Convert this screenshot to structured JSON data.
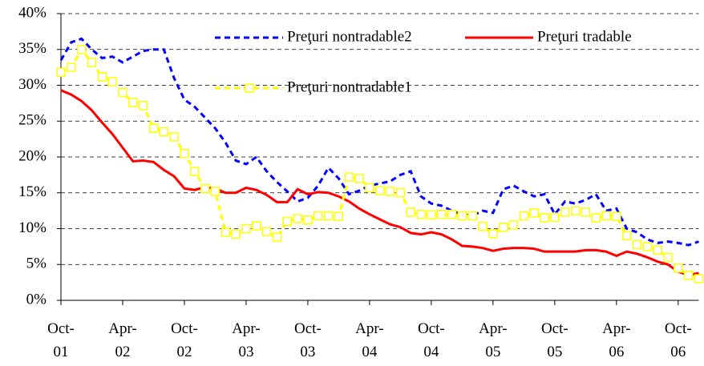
{
  "chart_data": {
    "type": "line",
    "categories": [
      "Oct-01",
      null,
      null,
      null,
      null,
      null,
      "Apr-02",
      null,
      null,
      null,
      null,
      null,
      "Oct-02",
      null,
      null,
      null,
      null,
      null,
      "Apr-03",
      null,
      null,
      null,
      null,
      null,
      "Oct-03",
      null,
      null,
      null,
      null,
      null,
      "Apr-04",
      null,
      null,
      null,
      null,
      null,
      "Oct-04",
      null,
      null,
      null,
      null,
      null,
      "Apr-05",
      null,
      null,
      null,
      null,
      null,
      "Oct-05",
      null,
      null,
      null,
      null,
      null,
      "Apr-06",
      null,
      null,
      null,
      null,
      null,
      "Oct-06",
      null,
      null
    ],
    "series": [
      {
        "name": "Preţuri nontradable2",
        "color": "#0000ff",
        "style": "dashed",
        "values": [
          33.5,
          36.0,
          36.5,
          35.0,
          33.8,
          34.0,
          33.2,
          34.0,
          34.8,
          35.0,
          35.0,
          31.0,
          28.0,
          27.0,
          25.5,
          24.0,
          22.0,
          19.5,
          19.0,
          20.0,
          18.0,
          16.5,
          15.2,
          13.8,
          14.3,
          16.0,
          18.5,
          17.0,
          14.8,
          15.3,
          16.0,
          16.3,
          16.6,
          17.5,
          18.0,
          14.5,
          13.5,
          13.2,
          12.5,
          12.0,
          11.8,
          12.5,
          12.2,
          15.5,
          16.0,
          15.2,
          14.5,
          14.8,
          12.0,
          13.8,
          13.5,
          14.0,
          14.8,
          12.5,
          12.8,
          10.0,
          9.5,
          8.5,
          8.0,
          8.2,
          8.0,
          7.7,
          8.2
        ]
      },
      {
        "name": "Preţuri tradable",
        "color": "#ff0000",
        "style": "solid",
        "values": [
          29.3,
          28.7,
          27.8,
          26.5,
          24.8,
          23.2,
          21.3,
          19.4,
          19.5,
          19.3,
          18.2,
          17.3,
          15.6,
          15.4,
          15.8,
          15.6,
          15.0,
          15.0,
          15.7,
          15.4,
          14.7,
          13.7,
          13.7,
          15.5,
          14.8,
          15.1,
          15.0,
          14.5,
          13.8,
          12.8,
          12.0,
          11.3,
          10.6,
          10.2,
          9.4,
          9.2,
          9.5,
          9.2,
          8.5,
          7.6,
          7.5,
          7.3,
          6.9,
          7.2,
          7.3,
          7.3,
          7.2,
          6.8,
          6.8,
          6.8,
          6.8,
          7.0,
          7.0,
          6.8,
          6.2,
          6.8,
          6.5,
          6.0,
          5.4,
          5.0,
          4.0,
          3.5,
          3.8
        ]
      },
      {
        "name": "Preţuri nontradable1",
        "color": "#ffff00",
        "style": "dashed-marker",
        "values": [
          31.8,
          32.5,
          35.0,
          33.2,
          31.2,
          30.5,
          29.0,
          27.6,
          27.2,
          24.0,
          23.5,
          22.8,
          20.5,
          18.0,
          15.6,
          15.2,
          9.5,
          9.2,
          10.0,
          10.4,
          9.6,
          8.8,
          11.0,
          11.4,
          11.2,
          11.8,
          11.8,
          11.7,
          17.2,
          17.0,
          15.7,
          15.3,
          15.2,
          15.0,
          12.3,
          12.0,
          11.9,
          12.0,
          12.0,
          11.8,
          11.8,
          10.3,
          9.3,
          10.2,
          10.5,
          11.8,
          12.2,
          11.5,
          11.6,
          12.3,
          12.5,
          12.3,
          11.5,
          11.8,
          11.7,
          9.0,
          7.8,
          7.5,
          7.0,
          6.0,
          4.5,
          3.5,
          3.0
        ]
      }
    ],
    "ylim": [
      0,
      40
    ],
    "yticks": [
      {
        "value": 0,
        "label": "0%"
      },
      {
        "value": 5,
        "label": "5%"
      },
      {
        "value": 10,
        "label": "10%"
      },
      {
        "value": 15,
        "label": "15%"
      },
      {
        "value": 20,
        "label": "20%"
      },
      {
        "value": 25,
        "label": "25%"
      },
      {
        "value": 30,
        "label": "30%"
      },
      {
        "value": 35,
        "label": "35%"
      },
      {
        "value": 40,
        "label": "40%"
      }
    ],
    "grid": true
  }
}
